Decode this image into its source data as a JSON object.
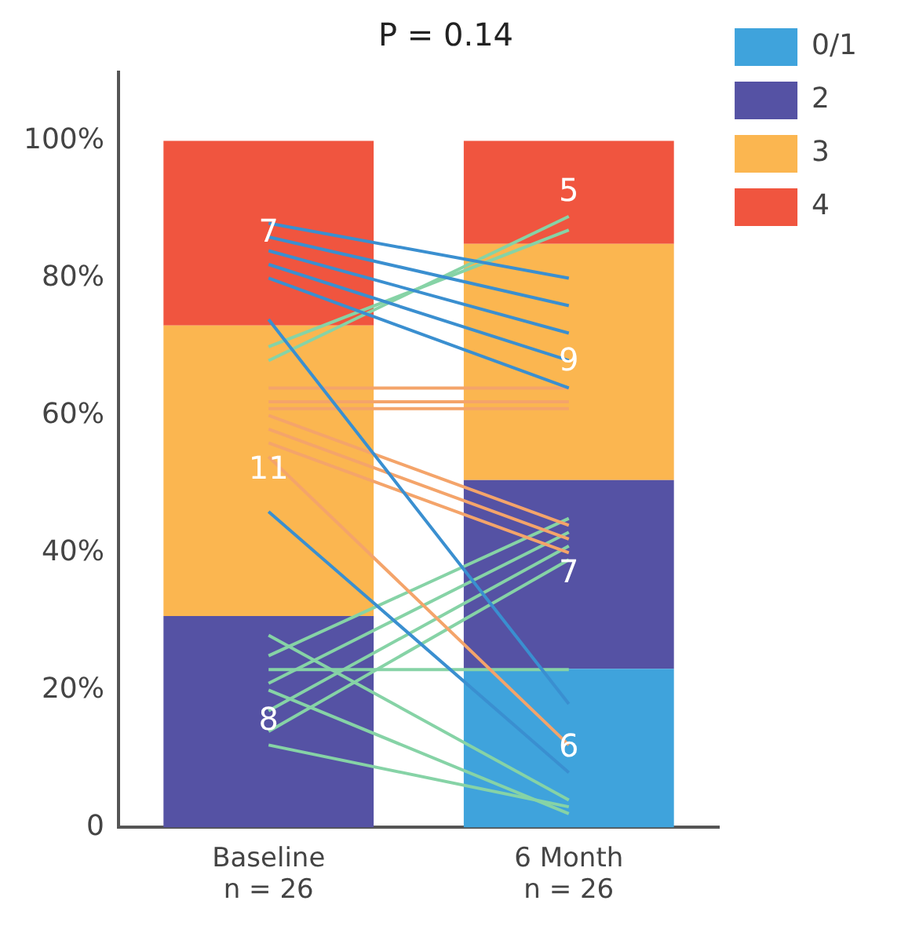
{
  "chart_data": {
    "type": "bar",
    "title": "P = 0.14",
    "categories": [
      "Baseline\nn = 26",
      "6 Month\nn = 26"
    ],
    "stacked": true,
    "legend": "right",
    "grid": false,
    "ylim": [
      0,
      110
    ],
    "yticks": [
      {
        "value": 0,
        "label": "0"
      },
      {
        "value": 20,
        "label": "20%"
      },
      {
        "value": 40,
        "label": "40%"
      },
      {
        "value": 60,
        "label": "60%"
      },
      {
        "value": 80,
        "label": "80%"
      },
      {
        "value": 100,
        "label": "100%"
      }
    ],
    "annotations": [
      "8",
      "11",
      "7",
      "6",
      "7",
      "9",
      "5"
    ],
    "series": [
      {
        "name": "0/1",
        "color": "#3fa3dc",
        "values": [
          0,
          23.1
        ]
      },
      {
        "name": "2",
        "color": "#5552a4",
        "values": [
          30.8,
          27.5
        ]
      },
      {
        "name": "3",
        "color": "#fbb650",
        "values": [
          42.3,
          34.4
        ]
      },
      {
        "name": "4",
        "color": "#f0553f",
        "values": [
          26.9,
          15.0
        ]
      },
      {
        "type": "line",
        "color": "#3a8fd0",
        "values": [
          88,
          80
        ]
      },
      {
        "type": "line",
        "color": "#3a8fd0",
        "values": [
          86,
          76
        ]
      },
      {
        "type": "line",
        "color": "#3a8fd0",
        "values": [
          84,
          72
        ]
      },
      {
        "type": "line",
        "color": "#3a8fd0",
        "values": [
          82,
          68
        ]
      },
      {
        "type": "line",
        "color": "#3a8fd0",
        "values": [
          80,
          64
        ]
      },
      {
        "type": "line",
        "color": "#3a8fd0",
        "values": [
          74,
          18
        ]
      },
      {
        "type": "line",
        "color": "#3a8fd0",
        "values": [
          46,
          8
        ]
      },
      {
        "type": "line",
        "color": "#f4a46a",
        "values": [
          64,
          64
        ]
      },
      {
        "type": "line",
        "color": "#f4a46a",
        "values": [
          62,
          62
        ]
      },
      {
        "type": "line",
        "color": "#f4a46a",
        "values": [
          61,
          61
        ]
      },
      {
        "type": "line",
        "color": "#f4a46a",
        "values": [
          60,
          44
        ]
      },
      {
        "type": "line",
        "color": "#f4a46a",
        "values": [
          58,
          42
        ]
      },
      {
        "type": "line",
        "color": "#f4a46a",
        "values": [
          56,
          40
        ]
      },
      {
        "type": "line",
        "color": "#f4a46a",
        "values": [
          54,
          12
        ]
      },
      {
        "type": "line",
        "color": "#86d3a6",
        "values": [
          68,
          89
        ]
      },
      {
        "type": "line",
        "color": "#86d3a6",
        "values": [
          70,
          87
        ]
      },
      {
        "type": "line",
        "color": "#86d3a6",
        "values": [
          25,
          45
        ]
      },
      {
        "type": "line",
        "color": "#86d3a6",
        "values": [
          21,
          43
        ]
      },
      {
        "type": "line",
        "color": "#86d3a6",
        "values": [
          17,
          41
        ]
      },
      {
        "type": "line",
        "color": "#86d3a6",
        "values": [
          14,
          39
        ]
      },
      {
        "type": "line",
        "color": "#86d3a6",
        "values": [
          23,
          23
        ]
      },
      {
        "type": "line",
        "color": "#86d3a6",
        "values": [
          28,
          4
        ]
      },
      {
        "type": "line",
        "color": "#86d3a6",
        "values": [
          20,
          2
        ]
      },
      {
        "type": "line",
        "color": "#86d3a6",
        "values": [
          12,
          3
        ]
      }
    ]
  }
}
